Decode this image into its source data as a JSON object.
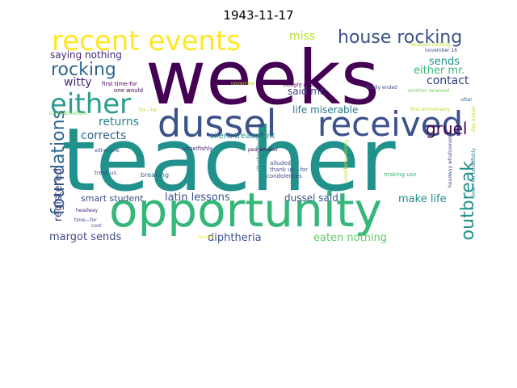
{
  "title": "1943-11-17",
  "words": [
    {
      "text": "teacher",
      "color": "#21918c"
    },
    {
      "text": "weeks",
      "color": "#440154"
    },
    {
      "text": "opportunity",
      "color": "#35b779"
    },
    {
      "text": "dussel",
      "color": "#3b528b"
    },
    {
      "text": "received",
      "color": "#3b528b"
    },
    {
      "text": "recent events",
      "color": "#fde725"
    },
    {
      "text": "either",
      "color": "#2a9d8f"
    },
    {
      "text": "house rocking",
      "color": "#3b528b"
    },
    {
      "text": "rocking",
      "color": "#31688e"
    },
    {
      "text": "foundations",
      "color": "#31688e"
    },
    {
      "text": "outbreak",
      "color": "#21918c"
    },
    {
      "text": "gruel",
      "color": "#440154"
    },
    {
      "text": "miss",
      "color": "#b5de2b"
    },
    {
      "text": "contact",
      "color": "#2c3e7a"
    },
    {
      "text": "sends",
      "color": "#21918c"
    },
    {
      "text": "either mr.",
      "color": "#35b779"
    },
    {
      "text": "saying nothing",
      "color": "#482878"
    },
    {
      "text": "witty",
      "color": "#482878"
    },
    {
      "text": "said mr.",
      "color": "#3e4a89"
    },
    {
      "text": "returns",
      "color": "#26828e"
    },
    {
      "text": "corrects",
      "color": "#31688e"
    },
    {
      "text": "registered",
      "color": "#443a83"
    },
    {
      "text": "life miserable",
      "color": "#2a788e"
    },
    {
      "text": "smart student",
      "color": "#3e4a89"
    },
    {
      "text": "latin lessons",
      "color": "#3b528b"
    },
    {
      "text": "dussel said",
      "color": "#3b528b"
    },
    {
      "text": "make life",
      "color": "#21918c"
    },
    {
      "text": "margot sends",
      "color": "#3e4a89"
    },
    {
      "text": "diphtheria",
      "color": "#3b528b"
    },
    {
      "text": "eaten nothing",
      "color": "#5ec962"
    },
    {
      "text": "first time-for",
      "color": "#440154"
    },
    {
      "text": "one would",
      "color": "#440154"
    },
    {
      "text": "congratulations",
      "color": "#6ece58"
    },
    {
      "text": "silent treatment",
      "color": "#21918c"
    },
    {
      "text": "unselfishly",
      "color": "#482878"
    },
    {
      "text": "peacemaker",
      "color": "#440154"
    },
    {
      "text": "either one",
      "color": "#3e4a89"
    },
    {
      "text": "treat us",
      "color": "#3b528b"
    },
    {
      "text": "breaking",
      "color": "#31688e"
    },
    {
      "text": "alluded",
      "color": "#3b528b"
    },
    {
      "text": "thank us—for",
      "color": "#3b528b"
    },
    {
      "text": "condolences",
      "color": "#3e4a89"
    },
    {
      "text": "making use",
      "color": "#35b779"
    },
    {
      "text": "headway",
      "color": "#482878"
    },
    {
      "text": "time—for",
      "color": "#3e4a89"
    },
    {
      "text": "cost",
      "color": "#3b528b"
    },
    {
      "text": "thought dussel",
      "color": "#440154"
    },
    {
      "text": "finally ended",
      "color": "#3e4a89"
    },
    {
      "text": "november",
      "color": "#b5de2b"
    },
    {
      "text": "november 16",
      "color": "#3e4a89"
    },
    {
      "text": "another received",
      "color": "#6ece58"
    },
    {
      "text": "received nothing",
      "color": "#b5de2b"
    },
    {
      "text": "first anniversary",
      "color": "#b5de2b"
    },
    {
      "text": "utter",
      "color": "#31688e"
    },
    {
      "text": "situation finally",
      "color": "#21918c"
    },
    {
      "text": "unselfishly taking",
      "color": "#b5de2b"
    },
    {
      "text": "headway whatsoever",
      "color": "#3e4a89"
    },
    {
      "text": "day dussel",
      "color": "#b5de2b"
    },
    {
      "text": "time—for unselfishly",
      "color": "#2a788e"
    },
    {
      "text": "dussel",
      "color": "#fde725"
    },
    {
      "text": "for—for",
      "color": "#b5de2b"
    }
  ]
}
